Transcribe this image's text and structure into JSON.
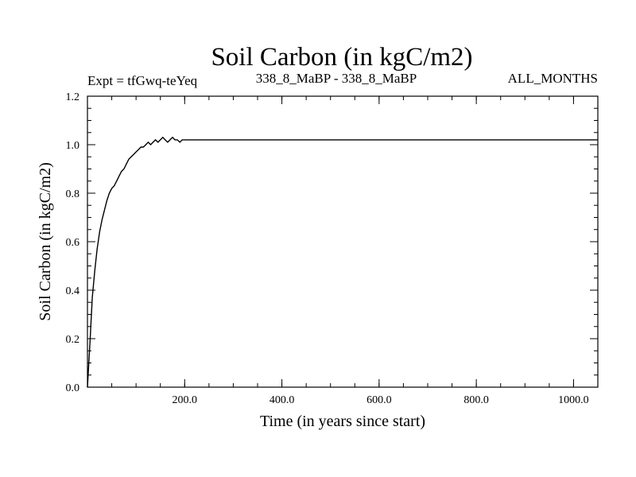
{
  "chart_data": {
    "type": "line",
    "title": "Soil Carbon (in kgC/m2)",
    "subtitle_left": "Expt = tfGwq-teYeq",
    "subtitle_center": "338_8_MaBP - 338_8_MaBP",
    "subtitle_right": "ALL_MONTHS",
    "xlabel": "Time (in years since start)",
    "ylabel": "Soil Carbon (in kgC/m2)",
    "xlim": [
      0,
      1050
    ],
    "ylim": [
      0,
      1.2
    ],
    "x_ticks": [
      {
        "value": 200,
        "label": "200.0"
      },
      {
        "value": 400,
        "label": "400.0"
      },
      {
        "value": 600,
        "label": "600.0"
      },
      {
        "value": 800,
        "label": "800.0"
      },
      {
        "value": 1000,
        "label": "1000.0"
      }
    ],
    "y_ticks": [
      {
        "value": 0.0,
        "label": "0.0"
      },
      {
        "value": 0.2,
        "label": "0.2"
      },
      {
        "value": 0.4,
        "label": "0.4"
      },
      {
        "value": 0.6,
        "label": "0.6"
      },
      {
        "value": 0.8,
        "label": "0.8"
      },
      {
        "value": 1.0,
        "label": "1.0"
      },
      {
        "value": 1.2,
        "label": "1.2"
      }
    ],
    "series": [
      {
        "name": "Soil Carbon",
        "color": "#000000",
        "x": [
          0,
          5,
          10,
          15,
          20,
          25,
          30,
          35,
          40,
          45,
          50,
          55,
          60,
          65,
          70,
          75,
          80,
          85,
          90,
          95,
          100,
          105,
          110,
          115,
          120,
          125,
          130,
          135,
          140,
          145,
          150,
          155,
          160,
          165,
          170,
          175,
          180,
          185,
          190,
          195,
          200,
          1050
        ],
        "y": [
          0.0,
          0.18,
          0.37,
          0.48,
          0.57,
          0.64,
          0.69,
          0.73,
          0.77,
          0.8,
          0.82,
          0.83,
          0.85,
          0.87,
          0.89,
          0.9,
          0.92,
          0.94,
          0.95,
          0.96,
          0.97,
          0.98,
          0.99,
          0.99,
          1.0,
          1.01,
          1.0,
          1.01,
          1.02,
          1.01,
          1.02,
          1.03,
          1.02,
          1.01,
          1.02,
          1.03,
          1.02,
          1.02,
          1.01,
          1.02,
          1.02,
          1.02
        ]
      }
    ]
  }
}
